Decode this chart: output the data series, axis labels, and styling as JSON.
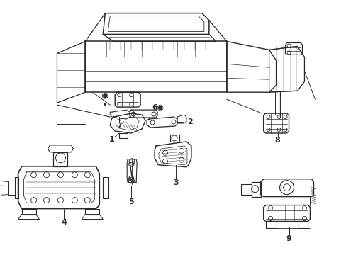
{
  "background_color": "#ffffff",
  "line_color": "#2a2a2a",
  "figsize": [
    4.89,
    3.6
  ],
  "dpi": 100,
  "label_fontsize": 8
}
